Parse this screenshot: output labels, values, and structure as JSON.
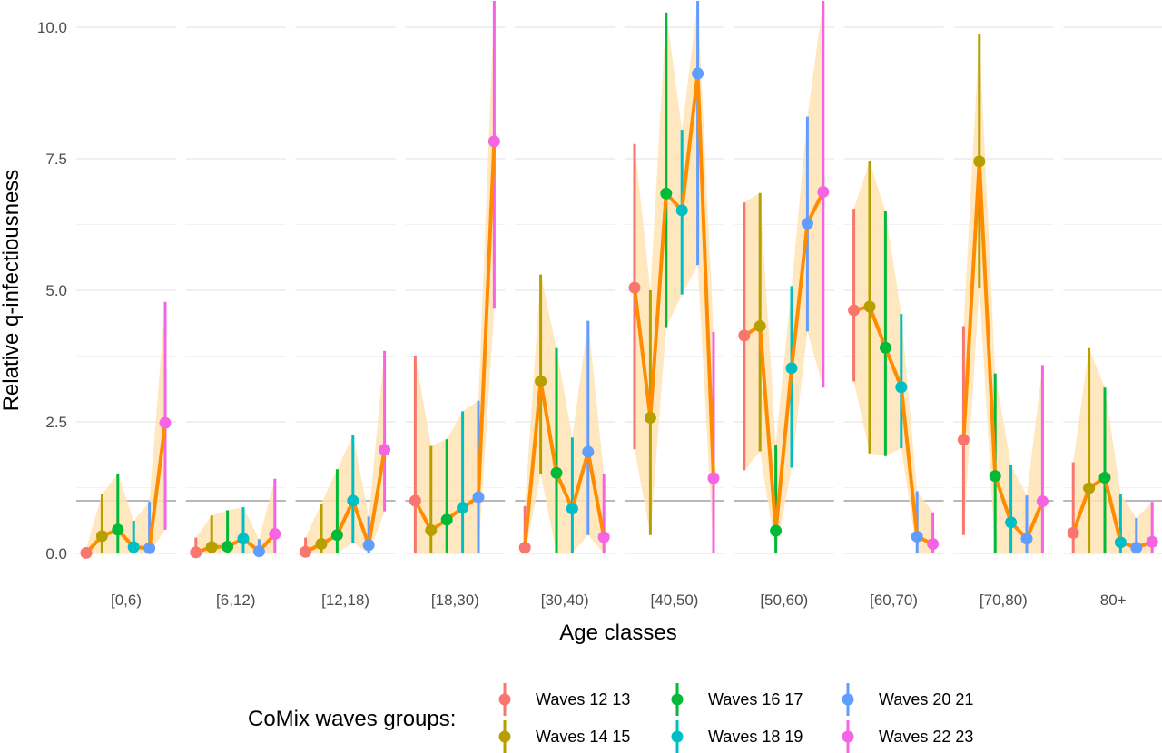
{
  "chart_data": {
    "type": "line",
    "xlabel": "Age classes",
    "ylabel": "Relative q-infectiousness",
    "ylim": [
      0,
      10.5
    ],
    "y_ticks": [
      "0.0",
      "2.5",
      "5.0",
      "7.5",
      "10.0"
    ],
    "reference_line": 1,
    "categories": [
      "[0,6)",
      "[6,12)",
      "[12,18)",
      "[18,30)",
      "[30,40)",
      "[40,50)",
      "[50,60)",
      "[60,70)",
      "[70,80)",
      "80+"
    ],
    "series": [
      {
        "name": "Waves 12 13",
        "color": "#F8766D"
      },
      {
        "name": "Waves 14 15",
        "color": "#B79F00"
      },
      {
        "name": "Waves 16 17",
        "color": "#00BA38"
      },
      {
        "name": "Waves 18 19",
        "color": "#00BFC4"
      },
      {
        "name": "Waves 20 21",
        "color": "#619CFF"
      },
      {
        "name": "Waves 22 23",
        "color": "#F564E3"
      }
    ],
    "line_color": "#FF8C00",
    "ribbon_color": "#FFE4B5",
    "panels": [
      {
        "values": [
          0.01,
          0.33,
          0.45,
          0.12,
          0.1,
          2.48
        ],
        "lower": [
          0,
          0,
          0,
          0,
          0,
          0.45
        ],
        "upper": [
          0.1,
          1.12,
          1.52,
          0.62,
          0.98,
          4.78
        ]
      },
      {
        "values": [
          0.02,
          0.12,
          0.13,
          0.28,
          0.04,
          0.37
        ],
        "lower": [
          0,
          0,
          0,
          0,
          0,
          0
        ],
        "upper": [
          0.3,
          0.72,
          0.82,
          0.88,
          0.27,
          1.42
        ]
      },
      {
        "values": [
          0.03,
          0.18,
          0.35,
          1.0,
          0.16,
          1.97
        ],
        "lower": [
          0,
          0,
          0,
          0.2,
          0,
          0.8
        ],
        "upper": [
          0.3,
          0.95,
          1.6,
          2.25,
          0.7,
          3.85
        ]
      },
      {
        "values": [
          1.0,
          0.44,
          0.64,
          0.87,
          1.07,
          7.83
        ],
        "lower": [
          0,
          0,
          0,
          0,
          0,
          4.65
        ],
        "upper": [
          3.76,
          2.04,
          2.17,
          2.7,
          2.9,
          10.5
        ]
      },
      {
        "values": [
          0.11,
          3.27,
          1.53,
          0.85,
          1.93,
          0.31
        ],
        "lower": [
          0,
          1.5,
          0,
          0,
          0.35,
          0
        ],
        "upper": [
          0.9,
          5.3,
          3.9,
          2.2,
          4.42,
          1.52
        ]
      },
      {
        "values": [
          5.05,
          2.58,
          6.84,
          6.52,
          9.12,
          1.43
        ],
        "lower": [
          1.98,
          0.35,
          4.3,
          4.92,
          5.48,
          0
        ],
        "upper": [
          7.78,
          5.0,
          10.28,
          8.05,
          10.5,
          4.21
        ]
      },
      {
        "values": [
          4.14,
          4.32,
          0.43,
          3.52,
          6.27,
          6.87
        ],
        "lower": [
          1.58,
          1.94,
          0,
          1.63,
          4.22,
          3.15
        ],
        "upper": [
          6.67,
          6.85,
          2.07,
          5.08,
          8.3,
          10.5
        ]
      },
      {
        "values": [
          4.62,
          4.69,
          3.91,
          3.16,
          0.32,
          0.18
        ],
        "lower": [
          3.27,
          1.9,
          1.85,
          2.0,
          0,
          0
        ],
        "upper": [
          6.55,
          7.45,
          6.5,
          4.55,
          1.18,
          0.78
        ]
      },
      {
        "values": [
          2.16,
          7.45,
          1.47,
          0.59,
          0.28,
          0.99
        ],
        "lower": [
          0.35,
          5.05,
          0,
          0,
          0,
          0
        ],
        "upper": [
          4.32,
          9.88,
          3.42,
          1.68,
          1.1,
          3.58
        ]
      },
      {
        "values": [
          0.39,
          1.24,
          1.44,
          0.21,
          0.11,
          0.22
        ],
        "lower": [
          0,
          0,
          0,
          0,
          0,
          0
        ],
        "upper": [
          1.73,
          3.9,
          3.15,
          1.13,
          0.67,
          0.98
        ]
      }
    ]
  },
  "legend": {
    "title": "CoMix waves groups:",
    "items": [
      "Waves 12 13",
      "Waves 14 15",
      "Waves 16 17",
      "Waves 18 19",
      "Waves 20 21",
      "Waves 22 23"
    ]
  }
}
